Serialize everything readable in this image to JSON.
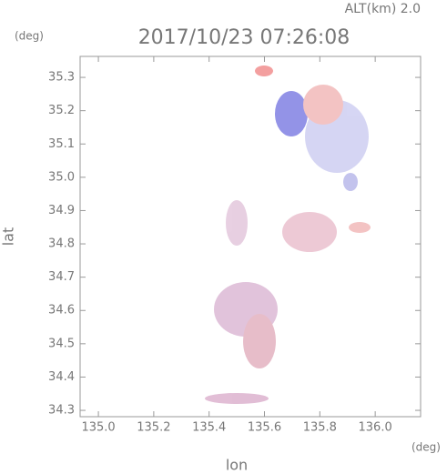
{
  "chart_data": {
    "type": "map",
    "title": "2017/10/23 07:26:08",
    "altitude_label": "ALT(km) 2.0",
    "y_unit": "(deg)",
    "x_unit": "(deg)",
    "xlabel": "lon",
    "ylabel": "lat",
    "xlim": [
      134.934,
      136.164
    ],
    "ylim": [
      34.281,
      35.363
    ],
    "xticks": [
      {
        "value": 135,
        "label": "135.0"
      },
      135.2,
      135.4,
      135.6,
      135.8,
      {
        "value": 136,
        "label": "136.0"
      }
    ],
    "yticks": [
      34.3,
      34.4,
      34.5,
      34.6,
      34.7,
      34.8,
      34.9,
      {
        "value": 35,
        "label": "35.0"
      },
      35.1,
      35.2,
      35.3
    ]
  }
}
